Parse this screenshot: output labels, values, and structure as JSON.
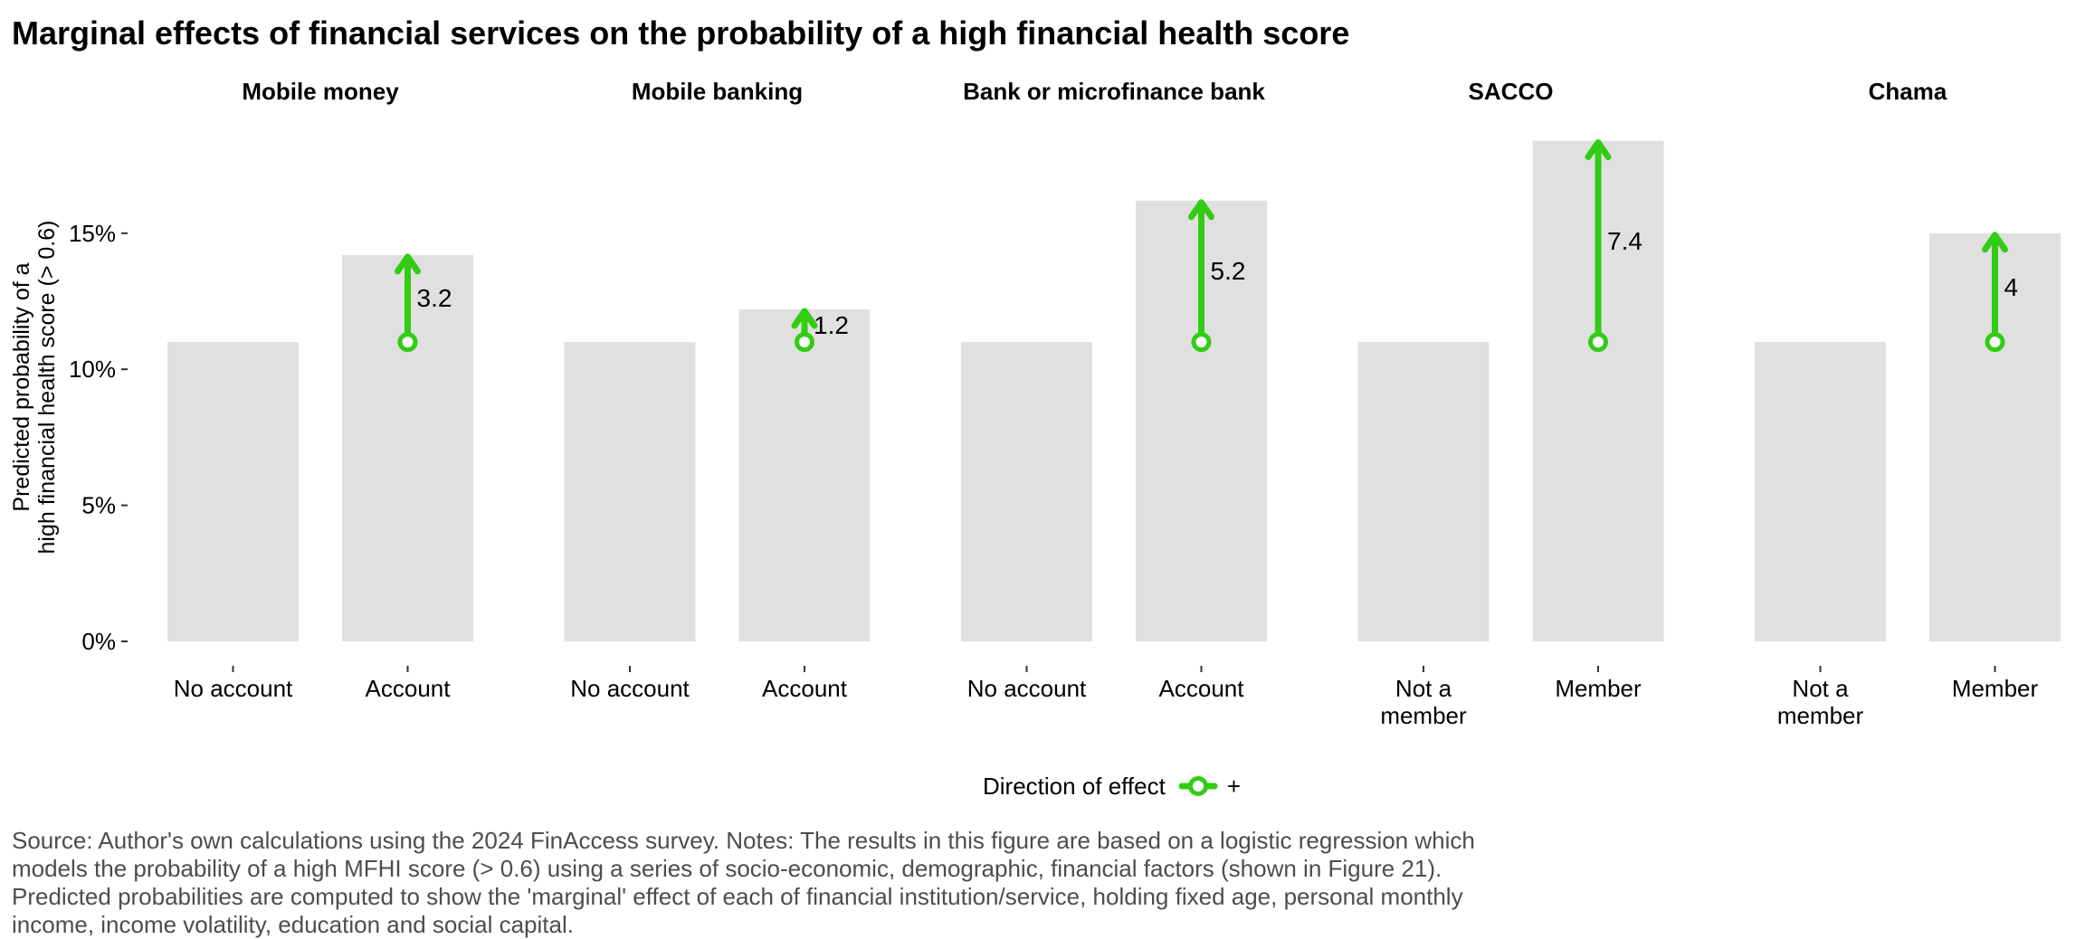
{
  "title": "Marginal effects of financial services on the probability of a high financial health score",
  "chart_data": {
    "type": "bar",
    "title": "Marginal effects of financial services on the probability of a high financial health score",
    "ylabel_lines": [
      "Predicted probability of a",
      "high financial health score (> 0.6)"
    ],
    "xlabel": "",
    "ylim": [
      0,
      0.19
    ],
    "yticks": [
      0,
      0.05,
      0.1,
      0.15
    ],
    "ytick_labels": [
      "0%",
      "5%",
      "10%",
      "15%"
    ],
    "grid": false,
    "bar_color": "#e0e0e0",
    "arrow_color": "#33cc14",
    "panels": [
      {
        "name": "Mobile money",
        "categories": [
          [
            "No account"
          ],
          [
            "Account"
          ]
        ],
        "values": [
          0.11,
          0.142
        ],
        "effect": {
          "from": 0.11,
          "to": 0.142,
          "label": "3.2"
        }
      },
      {
        "name": "Mobile banking",
        "categories": [
          [
            "No account"
          ],
          [
            "Account"
          ]
        ],
        "values": [
          0.11,
          0.122
        ],
        "effect": {
          "from": 0.11,
          "to": 0.122,
          "label": "1.2"
        }
      },
      {
        "name": "Bank or microfinance bank",
        "categories": [
          [
            "No account"
          ],
          [
            "Account"
          ]
        ],
        "values": [
          0.11,
          0.162
        ],
        "effect": {
          "from": 0.11,
          "to": 0.162,
          "label": "5.2"
        }
      },
      {
        "name": "SACCO",
        "categories": [
          [
            "Not a",
            "member"
          ],
          [
            "Member"
          ]
        ],
        "values": [
          0.11,
          0.184
        ],
        "effect": {
          "from": 0.11,
          "to": 0.184,
          "label": "7.4"
        }
      },
      {
        "name": "Chama",
        "categories": [
          [
            "Not a",
            "member"
          ],
          [
            "Member"
          ]
        ],
        "values": [
          0.11,
          0.15
        ],
        "effect": {
          "from": 0.11,
          "to": 0.15,
          "label": "4"
        }
      }
    ]
  },
  "legend": {
    "title": "Direction of effect",
    "entry": "+",
    "position": "bottom"
  },
  "caption": [
    "Source: Author's own calculations using the 2024 FinAccess survey. Notes: The results in this figure are based on a logistic regression which",
    "models the probability of a high MFHI score (> 0.6) using a series of socio-economic, demographic, financial factors (shown in Figure 21).",
    "Predicted probabilities are computed to show the 'marginal' effect of each of financial institution/service, holding fixed age, personal monthly",
    "income, income volatility, education and social capital."
  ]
}
